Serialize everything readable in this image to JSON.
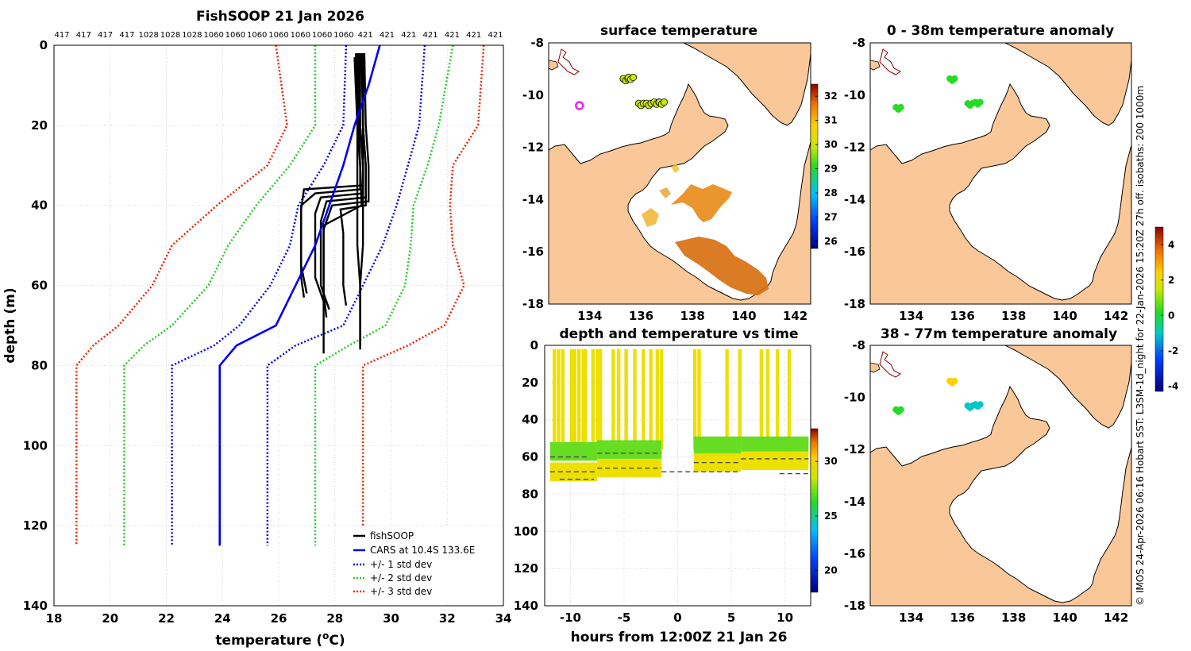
{
  "credit": "© IMOS 24-Apr-2026 06:16 Hobart SST: L3SM-1d_night for 22-Jan-2026 15:20Z 27h off. isobaths: 200  1000m",
  "colors": {
    "fishsoop": "#000000",
    "cars": "#0000ee",
    "std1": "#0000ee",
    "std2": "#22cc22",
    "std3": "#ee2200",
    "land": "#fac898",
    "coast": "#000000",
    "isobath": "#8b0000",
    "marker_magenta": "#ee22ee",
    "dash": "#444444"
  },
  "chart_data": [
    {
      "id": "profile",
      "type": "line",
      "title": "FishSOOP 21 Jan 2026",
      "xlabel": "temperature (",
      "xlabel_sup": "o",
      "xlabel_end": "C)",
      "ylabel": "depth (m)",
      "xlim": [
        18,
        34
      ],
      "ylim": [
        0,
        140
      ],
      "xticks": [
        "18",
        "20",
        "22",
        "24",
        "26",
        "28",
        "30",
        "32",
        "34"
      ],
      "yticks": [
        "0",
        "20",
        "40",
        "60",
        "80",
        "100",
        "120",
        "140"
      ],
      "top_labels": [
        "417",
        "417",
        "417",
        "417",
        "1028",
        "1028",
        "1028",
        "1060",
        "1060",
        "1060",
        "1060",
        "1060",
        "1060",
        "1060",
        "421",
        "421",
        "421",
        "421",
        "421",
        "421",
        "421"
      ],
      "legend": [
        "fishSOOP",
        "CARS at 10.4S 133.6E",
        "+/- 1 std dev",
        "+/- 2 std dev",
        "+/- 3 std dev"
      ],
      "cars": {
        "t": [
          29.6,
          29.4,
          29.2,
          28.7,
          28.3,
          27.8,
          27.3,
          26.6,
          25.9,
          24.5,
          23.9,
          23.9
        ],
        "d": [
          0,
          5,
          10,
          20,
          30,
          40,
          50,
          60,
          70,
          75,
          80,
          125
        ]
      },
      "std_curves": [
        {
          "name": "-3",
          "t": [
            25.9,
            26.3,
            25.6,
            23.8,
            22.2,
            21.5,
            20.3,
            19.4,
            18.8,
            18.8
          ],
          "d": [
            0,
            20,
            30,
            40,
            50,
            60,
            70,
            75,
            80,
            125
          ]
        },
        {
          "name": "-2",
          "t": [
            27.3,
            27.3,
            26.4,
            25.2,
            24.2,
            23.5,
            22.2,
            21.2,
            20.5,
            20.5
          ],
          "d": [
            0,
            20,
            30,
            40,
            50,
            60,
            70,
            75,
            80,
            125
          ]
        },
        {
          "name": "-1",
          "t": [
            28.4,
            28.3,
            27.6,
            26.7,
            26.4,
            25.7,
            24.6,
            23.7,
            22.2,
            22.2
          ],
          "d": [
            0,
            20,
            30,
            40,
            50,
            60,
            70,
            75,
            80,
            125
          ]
        },
        {
          "name": "+1",
          "t": [
            31.2,
            31.0,
            30.6,
            30.2,
            29.7,
            29.0,
            28.3,
            26.6,
            25.6,
            25.6
          ],
          "d": [
            0,
            20,
            30,
            40,
            50,
            60,
            70,
            75,
            80,
            125
          ]
        },
        {
          "name": "+2",
          "t": [
            32.2,
            31.7,
            31.3,
            30.8,
            30.7,
            30.5,
            29.8,
            28.5,
            27.3,
            27.3
          ],
          "d": [
            0,
            20,
            30,
            40,
            50,
            60,
            70,
            75,
            80,
            125
          ]
        },
        {
          "name": "+3",
          "t": [
            33.3,
            33.1,
            32.2,
            32.1,
            32.2,
            32.6,
            31.9,
            30.6,
            29.0,
            29.0
          ],
          "d": [
            0,
            20,
            30,
            40,
            50,
            60,
            70,
            75,
            80,
            125
          ]
        }
      ],
      "fishsoop_casts": [
        {
          "t": [
            28.75,
            28.8,
            28.9,
            28.9,
            27.3,
            26.8,
            26.8,
            27.0
          ],
          "d": [
            2,
            20,
            30,
            36,
            37,
            40,
            55,
            62
          ]
        },
        {
          "t": [
            28.85,
            28.9,
            29.0,
            29.0,
            27.5,
            27.3,
            27.3,
            27.6
          ],
          "d": [
            2,
            20,
            30,
            37,
            38,
            42,
            58,
            64
          ]
        },
        {
          "t": [
            28.95,
            29.0,
            29.1,
            29.1,
            27.7,
            27.5,
            27.5,
            27.8
          ],
          "d": [
            2,
            20,
            30,
            38,
            39,
            44,
            60,
            66
          ]
        },
        {
          "t": [
            29.05,
            29.1,
            29.2,
            29.2,
            27.9,
            27.6,
            27.6,
            27.7
          ],
          "d": [
            2,
            20,
            30,
            39,
            40,
            46,
            62,
            68
          ]
        },
        {
          "t": [
            29.0,
            29.0,
            29.1,
            29.1,
            28.2,
            28.3,
            28.3,
            28.4
          ],
          "d": [
            2,
            20,
            30,
            40,
            41,
            47,
            60,
            65
          ]
        },
        {
          "t": [
            28.9,
            28.9,
            29.0,
            29.0,
            26.9,
            26.8,
            26.8,
            26.9
          ],
          "d": [
            2,
            20,
            30,
            35,
            36,
            41,
            58,
            63
          ]
        },
        {
          "t": [
            28.8,
            28.85,
            28.9,
            28.95,
            27.6,
            27.6,
            27.6,
            27.6
          ],
          "d": [
            2,
            20,
            30,
            40,
            45,
            55,
            70,
            77
          ]
        },
        {
          "t": [
            29.0,
            29.0,
            29.0,
            29.0,
            29.0,
            28.9,
            28.9,
            28.9
          ],
          "d": [
            3,
            20,
            30,
            40,
            50,
            60,
            70,
            75
          ]
        },
        {
          "t": [
            28.7,
            28.8,
            28.8,
            28.8,
            28.8,
            28.9,
            28.9,
            28.9
          ],
          "d": [
            3,
            20,
            30,
            40,
            50,
            60,
            70,
            76
          ]
        }
      ]
    },
    {
      "id": "sst",
      "type": "map",
      "title": "surface temperature",
      "xlim": [
        132.4,
        142.6
      ],
      "ylim": [
        -18,
        -8
      ],
      "xticks": [
        "134",
        "136",
        "138",
        "140",
        "142"
      ],
      "yticks": [
        "-8",
        "-10",
        "-12",
        "-14",
        "-16",
        "-18"
      ],
      "colorbar": {
        "min": 25.7,
        "max": 32.5,
        "ticks": [
          "26",
          "27",
          "28",
          "29",
          "30",
          "31",
          "32"
        ]
      },
      "points": [
        {
          "lon": 135.4,
          "lat": -9.4,
          "value": 29.6
        },
        {
          "lon": 135.6,
          "lat": -9.35,
          "value": 29.7
        },
        {
          "lon": 136.0,
          "lat": -10.35,
          "value": 29.5
        },
        {
          "lon": 136.3,
          "lat": -10.35,
          "value": 29.5
        },
        {
          "lon": 136.6,
          "lat": -10.3,
          "value": 29.6
        },
        {
          "lon": 136.8,
          "lat": -10.3,
          "value": 29.6
        }
      ],
      "magenta_marker": {
        "lon": 133.6,
        "lat": -10.4
      }
    },
    {
      "id": "anom_shallow",
      "type": "map",
      "title": "0 - 38m temperature anomaly",
      "xlim": [
        132.4,
        142.6
      ],
      "ylim": [
        -18,
        -8
      ],
      "xticks": [
        "134",
        "136",
        "138",
        "140",
        "142"
      ],
      "yticks": [
        "-8",
        "-10",
        "-12",
        "-14",
        "-16",
        "-18"
      ],
      "points": [
        {
          "lon": 133.5,
          "lat": -10.5,
          "value": 0.2
        },
        {
          "lon": 135.6,
          "lat": -9.4,
          "value": 0.3
        },
        {
          "lon": 136.3,
          "lat": -10.35,
          "value": 0.1
        },
        {
          "lon": 136.6,
          "lat": -10.3,
          "value": 0.1
        }
      ]
    },
    {
      "id": "anom_deep",
      "type": "map",
      "title": "38 - 77m temperature anomaly",
      "xlim": [
        132.4,
        142.6
      ],
      "ylim": [
        -18,
        -8
      ],
      "xticks": [
        "134",
        "136",
        "138",
        "140",
        "142"
      ],
      "yticks": [
        "-8",
        "-10",
        "-12",
        "-14",
        "-16",
        "-18"
      ],
      "colorbar": {
        "min": -4.3,
        "max": 5.0,
        "ticks": [
          "4",
          "2",
          "0",
          "-2",
          "-4"
        ]
      },
      "points": [
        {
          "lon": 133.5,
          "lat": -10.5,
          "value": 0.3
        },
        {
          "lon": 135.6,
          "lat": -9.4,
          "value": 2.2
        },
        {
          "lon": 136.3,
          "lat": -10.35,
          "value": -1.2
        },
        {
          "lon": 136.6,
          "lat": -10.3,
          "value": -1.2
        }
      ]
    },
    {
      "id": "timeseries",
      "type": "scatter",
      "title": "depth and temperature vs time",
      "xlabel": "hours from 12:00Z 21 Jan 26",
      "xlim": [
        -12.4,
        12.4
      ],
      "ylim": [
        0,
        140
      ],
      "xticks": [
        "-10",
        "-5",
        "0",
        "5",
        "10"
      ],
      "yticks": [
        "0",
        "20",
        "40",
        "60",
        "80",
        "100",
        "120",
        "140"
      ],
      "colorbar": {
        "min": 18,
        "max": 33,
        "ticks": [
          "30",
          "25",
          "20"
        ]
      },
      "deployments": [
        {
          "start": -11.9,
          "end": -7.5,
          "bottom": 68,
          "thermo": 58
        },
        {
          "start": -7.5,
          "end": -1.5,
          "bottom": 66,
          "thermo": 57
        },
        {
          "start": 1.5,
          "end": 5.9,
          "bottom": 63,
          "thermo": 55
        },
        {
          "start": 5.9,
          "end": 12.2,
          "bottom": 62,
          "thermo": 55
        }
      ],
      "dashed_depths": [
        {
          "start": -11.9,
          "end": -8.5,
          "depth": 60
        },
        {
          "start": -11.9,
          "end": -7.5,
          "depth": 68
        },
        {
          "start": -11.0,
          "end": -7.8,
          "depth": 72
        },
        {
          "start": -7.5,
          "end": -1.5,
          "depth": 58
        },
        {
          "start": -7.5,
          "end": -1.5,
          "depth": 66
        },
        {
          "start": -1.5,
          "end": 5.9,
          "depth": 68
        },
        {
          "start": 1.5,
          "end": 5.9,
          "depth": 63
        },
        {
          "start": 5.9,
          "end": 12.2,
          "depth": 61
        },
        {
          "start": 9.5,
          "end": 12.2,
          "depth": 69
        }
      ],
      "vertical_casts": [
        -11.5,
        -11.1,
        -10.7,
        -9.9,
        -9.6,
        -9.2,
        -8.8,
        -8.6,
        -7.9,
        -7.5,
        -7.2,
        -6.0,
        -5.5,
        -4.8,
        -4.0,
        -3.2,
        -2.5,
        -1.9,
        -1.5,
        1.6,
        2.0,
        4.6,
        5.8,
        7.8,
        8.4,
        9.3,
        10.4
      ]
    }
  ]
}
